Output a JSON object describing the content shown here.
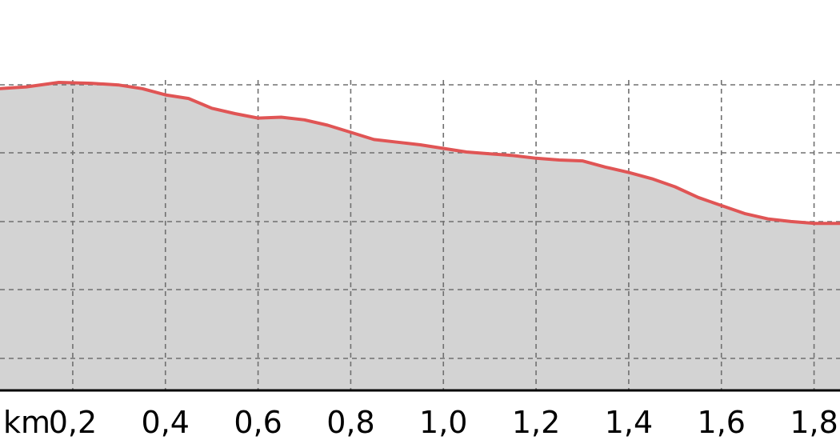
{
  "chart_data": {
    "type": "area",
    "title": "",
    "xlabel": "",
    "ylabel": "",
    "x_unit": "km",
    "x_ticks": [
      "0,2",
      "0,4",
      "0,6",
      "0,8",
      "1,0",
      "1,2",
      "1,4",
      "1,6",
      "1,8"
    ],
    "x_tick_values": [
      0.2,
      0.4,
      0.6,
      0.8,
      1.0,
      1.2,
      1.4,
      1.6,
      1.8
    ],
    "xlim": [
      0.043,
      1.856
    ],
    "y_gridlines": 5,
    "grid": true,
    "legend": "none",
    "series": [
      {
        "x": [
          0.043,
          0.1,
          0.17,
          0.24,
          0.3,
          0.35,
          0.4,
          0.45,
          0.5,
          0.55,
          0.6,
          0.65,
          0.7,
          0.75,
          0.8,
          0.85,
          0.9,
          0.95,
          1.0,
          1.05,
          1.1,
          1.15,
          1.2,
          1.25,
          1.3,
          1.35,
          1.4,
          1.45,
          1.5,
          1.55,
          1.6,
          1.65,
          1.7,
          1.75,
          1.8,
          1.856
        ],
        "y": [
          0.965,
          0.975,
          1.0,
          0.995,
          0.985,
          0.965,
          0.93,
          0.91,
          0.855,
          0.825,
          0.8,
          0.805,
          0.79,
          0.76,
          0.72,
          0.68,
          0.665,
          0.65,
          0.63,
          0.61,
          0.6,
          0.59,
          0.575,
          0.565,
          0.56,
          0.525,
          0.495,
          0.46,
          0.415,
          0.355,
          0.31,
          0.265,
          0.235,
          0.22,
          0.21,
          0.21
        ]
      }
    ]
  },
  "colors": {
    "line": "#e05555",
    "fill": "#d3d3d3",
    "grid": "#707070",
    "axis": "#000000"
  }
}
